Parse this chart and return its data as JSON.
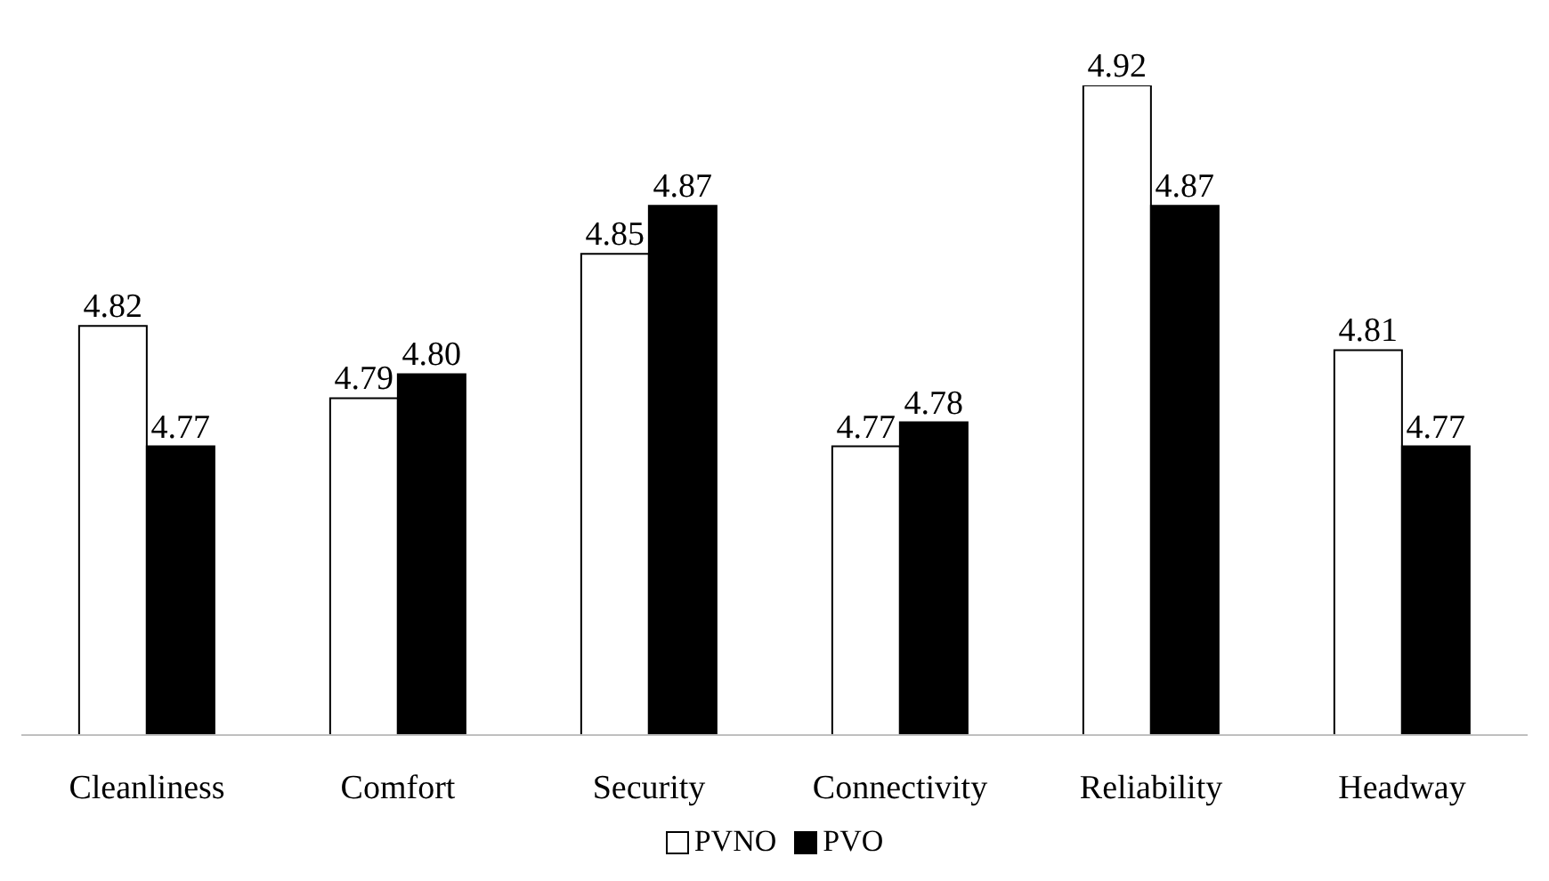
{
  "chart_data": {
    "type": "bar",
    "categories": [
      "Cleanliness",
      "Comfort",
      "Security",
      "Connectivity",
      "Reliability",
      "Headway"
    ],
    "series": [
      {
        "name": "PVNO",
        "color": "#ffffff",
        "values": [
          4.82,
          4.79,
          4.85,
          4.77,
          4.92,
          4.81
        ],
        "value_labels": [
          "4.82",
          "4.79",
          "4.85",
          "4.77",
          "4.92",
          "4.81"
        ]
      },
      {
        "name": "PVO",
        "color": "#000000",
        "values": [
          4.77,
          4.8,
          4.87,
          4.78,
          4.87,
          4.77
        ],
        "value_labels": [
          "4.77",
          "4.80",
          "4.87",
          "4.78",
          "4.87",
          "4.77"
        ]
      }
    ],
    "ylim": [
      4.65,
      4.92
    ],
    "tick_labels": "x",
    "grid": false,
    "legend": "bottom"
  }
}
